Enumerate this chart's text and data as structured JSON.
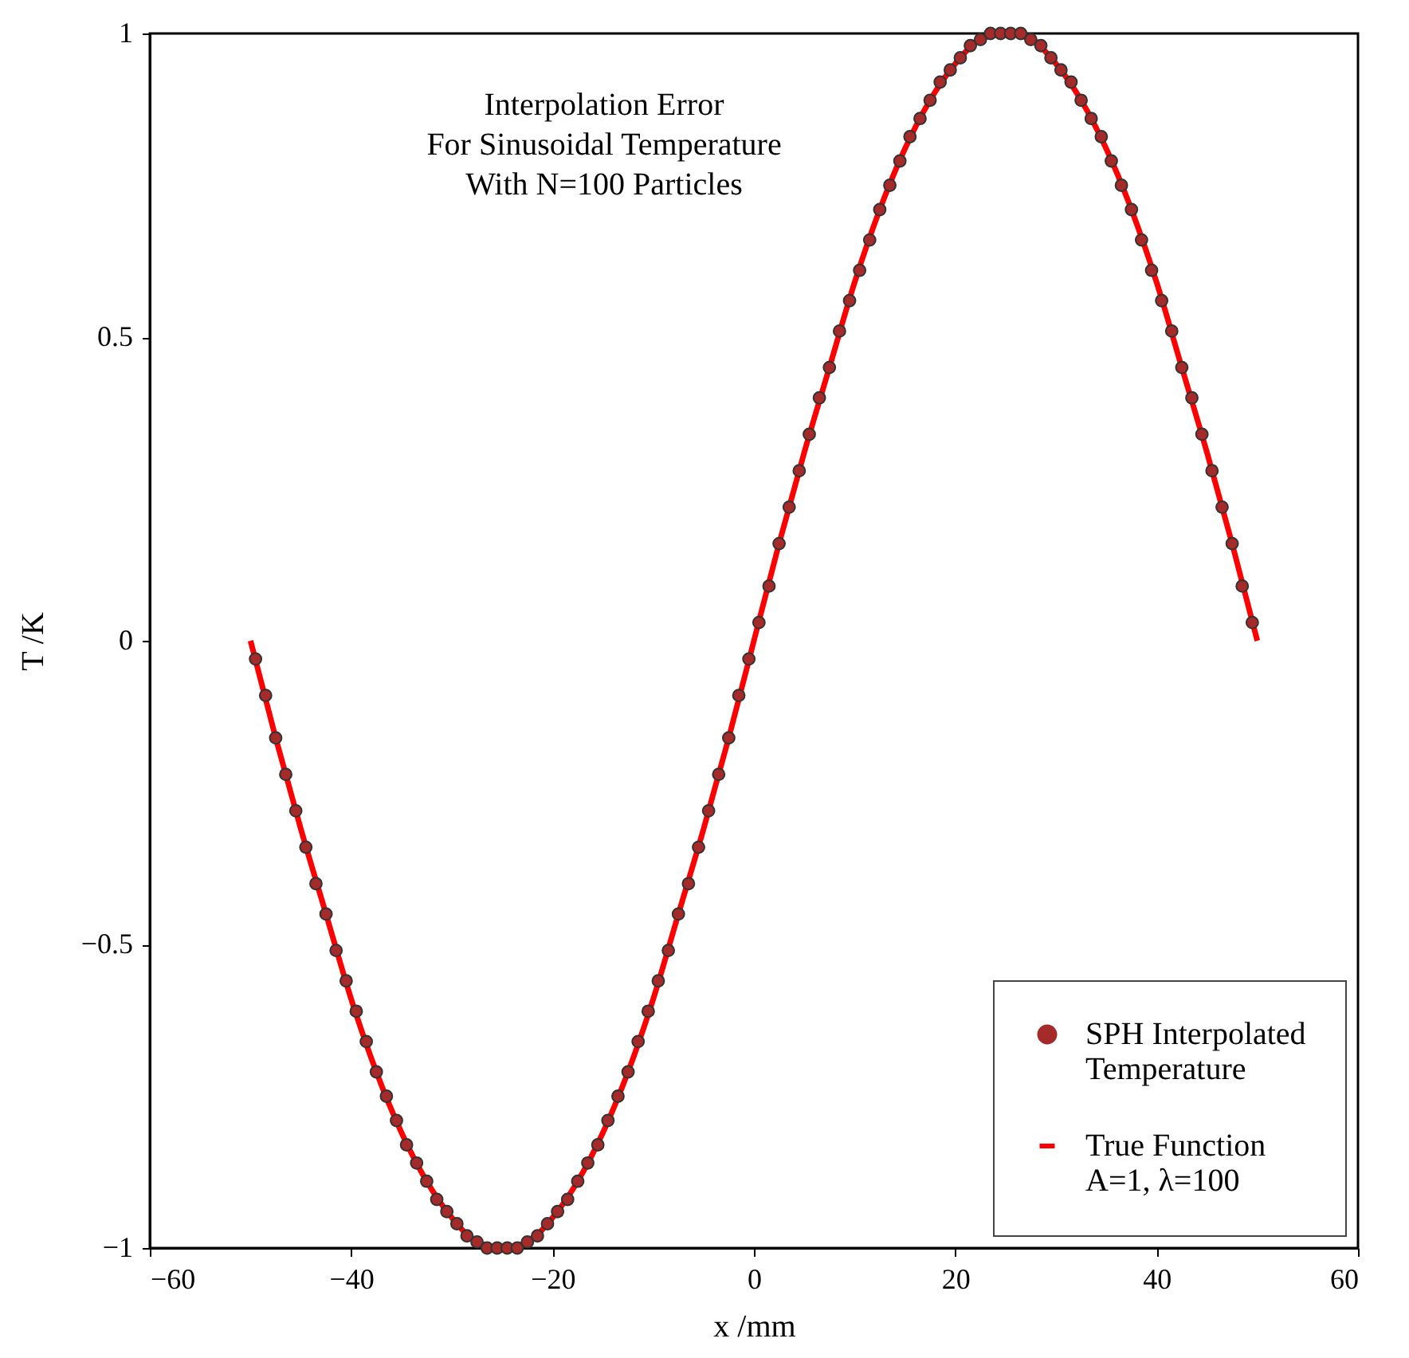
{
  "chart_data": {
    "type": "scatter",
    "xlabel": "x /mm",
    "ylabel": "T /K",
    "annotations": [
      "Interpolation Error\nFor Sinusoidal Temperature\nWith N=100 Particles"
    ],
    "xlim": [
      -60,
      60
    ],
    "xticks": [
      -60,
      -40,
      -20,
      0,
      20,
      40,
      60
    ],
    "ylim": [
      -1,
      1
    ],
    "yticks": [
      -1,
      -0.5,
      0,
      0.5,
      1
    ],
    "legend": "bottom right",
    "series": [
      {
        "name": "SPH Interpolated\nTemperature",
        "marker": "circle",
        "color": "#a52a2a",
        "x": [
          -49.5,
          -48.5,
          -47.5,
          -46.5,
          -45.5,
          -44.5,
          -43.5,
          -42.5,
          -41.5,
          -40.5,
          -39.5,
          -38.5,
          -37.5,
          -36.5,
          -35.5,
          -34.5,
          -33.5,
          -32.5,
          -31.5,
          -30.5,
          -29.5,
          -28.5,
          -27.5,
          -26.5,
          -25.5,
          -24.5,
          -23.5,
          -22.5,
          -21.5,
          -20.5,
          -19.5,
          -18.5,
          -17.5,
          -16.5,
          -15.5,
          -14.5,
          -13.5,
          -12.5,
          -11.5,
          -10.5,
          -9.5,
          -8.5,
          -7.5,
          -6.5,
          -5.5,
          -4.5,
          -3.5,
          -2.5,
          -1.5,
          -0.5,
          0.5,
          1.5,
          2.5,
          3.5,
          4.5,
          5.5,
          6.5,
          7.5,
          8.5,
          9.5,
          10.5,
          11.5,
          12.5,
          13.5,
          14.5,
          15.5,
          16.5,
          17.5,
          18.5,
          19.5,
          20.5,
          21.5,
          22.5,
          23.5,
          24.5,
          25.5,
          26.5,
          27.5,
          28.5,
          29.5,
          30.5,
          31.5,
          32.5,
          33.5,
          34.5,
          35.5,
          36.5,
          37.5,
          38.5,
          39.5,
          40.5,
          41.5,
          42.5,
          43.5,
          44.5,
          45.5,
          46.5,
          47.5,
          48.5,
          49.5
        ],
        "values": [
          -0.03,
          -0.09,
          -0.16,
          -0.22,
          -0.28,
          -0.34,
          -0.4,
          -0.45,
          -0.51,
          -0.56,
          -0.61,
          -0.66,
          -0.71,
          -0.75,
          -0.79,
          -0.83,
          -0.86,
          -0.89,
          -0.92,
          -0.94,
          -0.96,
          -0.98,
          -0.99,
          -1,
          -1,
          -1,
          -1,
          -0.99,
          -0.98,
          -0.96,
          -0.94,
          -0.92,
          -0.89,
          -0.86,
          -0.83,
          -0.79,
          -0.75,
          -0.71,
          -0.66,
          -0.61,
          -0.56,
          -0.51,
          -0.45,
          -0.4,
          -0.34,
          -0.28,
          -0.22,
          -0.16,
          -0.09,
          -0.03,
          0.03,
          0.09,
          0.16,
          0.22,
          0.28,
          0.34,
          0.4,
          0.45,
          0.51,
          0.56,
          0.61,
          0.66,
          0.71,
          0.75,
          0.79,
          0.83,
          0.86,
          0.89,
          0.92,
          0.94,
          0.96,
          0.98,
          0.99,
          1,
          1,
          1,
          1,
          0.99,
          0.98,
          0.96,
          0.94,
          0.92,
          0.89,
          0.86,
          0.83,
          0.79,
          0.75,
          0.71,
          0.66,
          0.61,
          0.56,
          0.51,
          0.45,
          0.4,
          0.34,
          0.28,
          0.22,
          0.16,
          0.09,
          0.03
        ]
      },
      {
        "name": "True Function\nA=1, λ=100",
        "type": "line",
        "color": "#ff0000",
        "x": [
          -50,
          -47.5,
          -45,
          -42.5,
          -40,
          -37.5,
          -35,
          -32.5,
          -30,
          -27.5,
          -25,
          -22.5,
          -20,
          -17.5,
          -15,
          -12.5,
          -10,
          -7.5,
          -5,
          -2.5,
          0,
          2.5,
          5,
          7.5,
          10,
          12.5,
          15,
          17.5,
          20,
          22.5,
          25,
          27.5,
          30,
          32.5,
          35,
          37.5,
          40,
          42.5,
          45,
          47.5,
          50
        ],
        "values": [
          0,
          -0.16,
          -0.31,
          -0.45,
          -0.59,
          -0.71,
          -0.81,
          -0.89,
          -0.95,
          -0.99,
          -1,
          -0.99,
          -0.95,
          -0.89,
          -0.81,
          -0.71,
          -0.59,
          -0.45,
          -0.31,
          -0.16,
          0,
          0.16,
          0.31,
          0.45,
          0.59,
          0.71,
          0.81,
          0.89,
          0.95,
          0.99,
          1,
          0.99,
          0.95,
          0.89,
          0.81,
          0.71,
          0.59,
          0.45,
          0.31,
          0.16,
          0
        ]
      }
    ]
  }
}
